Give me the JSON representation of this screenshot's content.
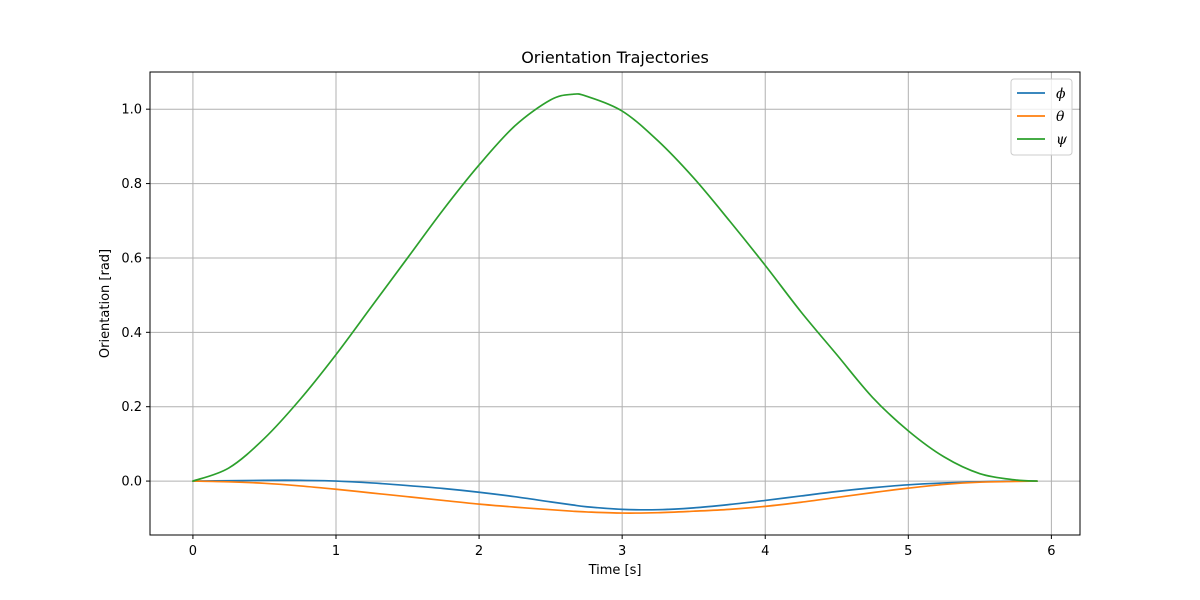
{
  "chart_data": {
    "type": "line",
    "title": "Orientation Trajectories",
    "xlabel": "Time [s]",
    "ylabel": "Orientation [rad]",
    "xlim": [
      -0.3,
      6.2
    ],
    "ylim": [
      -0.145,
      1.1
    ],
    "xticks": [
      0,
      1,
      2,
      3,
      4,
      5,
      6
    ],
    "yticks": [
      0.0,
      0.2,
      0.4,
      0.6,
      0.8,
      1.0
    ],
    "xtick_labels": [
      "0",
      "1",
      "2",
      "3",
      "4",
      "5",
      "6"
    ],
    "ytick_labels": [
      "0.0",
      "0.2",
      "0.4",
      "0.6",
      "0.8",
      "1.0"
    ],
    "grid": true,
    "legend_position": "top-right",
    "x": [
      0,
      0.25,
      0.5,
      0.75,
      1.0,
      1.25,
      1.5,
      1.75,
      2.0,
      2.25,
      2.5,
      2.65,
      2.75,
      3.0,
      3.25,
      3.5,
      3.75,
      4.0,
      4.25,
      4.5,
      4.75,
      5.0,
      5.25,
      5.5,
      5.75,
      5.9
    ],
    "series": [
      {
        "name": "ϕ",
        "color": "#1f77b4",
        "values": [
          0,
          0.001,
          0.002,
          0.002,
          0.0,
          -0.005,
          -0.012,
          -0.02,
          -0.03,
          -0.042,
          -0.056,
          -0.064,
          -0.069,
          -0.076,
          -0.077,
          -0.072,
          -0.063,
          -0.052,
          -0.04,
          -0.028,
          -0.018,
          -0.01,
          -0.005,
          -0.002,
          0.0,
          0.0
        ]
      },
      {
        "name": "θ",
        "color": "#ff7f0e",
        "values": [
          0,
          -0.002,
          -0.006,
          -0.013,
          -0.022,
          -0.032,
          -0.042,
          -0.052,
          -0.062,
          -0.07,
          -0.077,
          -0.081,
          -0.083,
          -0.086,
          -0.085,
          -0.081,
          -0.076,
          -0.068,
          -0.057,
          -0.044,
          -0.031,
          -0.019,
          -0.009,
          -0.003,
          -0.001,
          0.0
        ]
      },
      {
        "name": "ψ",
        "color": "#2ca02c",
        "values": [
          0,
          0.035,
          0.115,
          0.22,
          0.34,
          0.47,
          0.6,
          0.73,
          0.85,
          0.955,
          1.025,
          1.04,
          1.035,
          0.995,
          0.915,
          0.815,
          0.7,
          0.58,
          0.455,
          0.34,
          0.225,
          0.135,
          0.065,
          0.02,
          0.003,
          0.0
        ]
      }
    ]
  }
}
